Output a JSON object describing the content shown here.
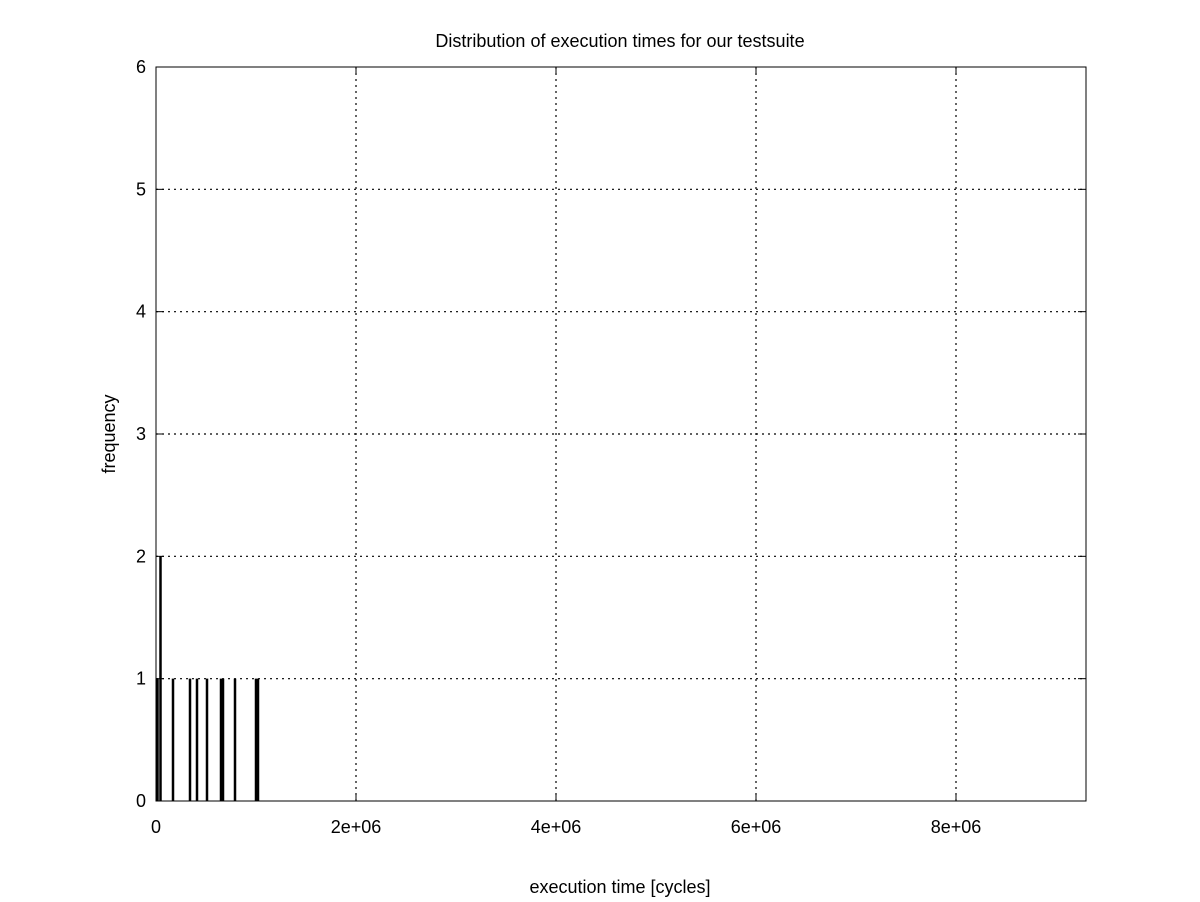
{
  "chart_data": {
    "type": "bar",
    "title": "Distribution of execution times for our testsuite",
    "xlabel": "execution time [cycles]",
    "ylabel": "frequency",
    "xlim": [
      0,
      9300000
    ],
    "ylim": [
      0,
      6
    ],
    "grid": true,
    "legend": "none",
    "x_ticks": [
      {
        "value": 0,
        "label": "0"
      },
      {
        "value": 2000000,
        "label": "2e+06"
      },
      {
        "value": 4000000,
        "label": "4e+06"
      },
      {
        "value": 6000000,
        "label": "6e+06"
      },
      {
        "value": 8000000,
        "label": "8e+06"
      }
    ],
    "y_ticks": [
      {
        "value": 0,
        "label": "0"
      },
      {
        "value": 1,
        "label": "1"
      },
      {
        "value": 2,
        "label": "2"
      },
      {
        "value": 3,
        "label": "3"
      },
      {
        "value": 4,
        "label": "4"
      },
      {
        "value": 5,
        "label": "5"
      },
      {
        "value": 6,
        "label": "6"
      }
    ],
    "bar_color": "#000000",
    "grid_color": "#000000",
    "series": [
      {
        "x": [
          15000,
          45000,
          170000,
          340000,
          410000,
          510000,
          650000,
          670000,
          790000,
          1000000,
          1020000
        ],
        "values": [
          1,
          2,
          1,
          1,
          1,
          1,
          1,
          1,
          1,
          1,
          1
        ]
      }
    ]
  }
}
